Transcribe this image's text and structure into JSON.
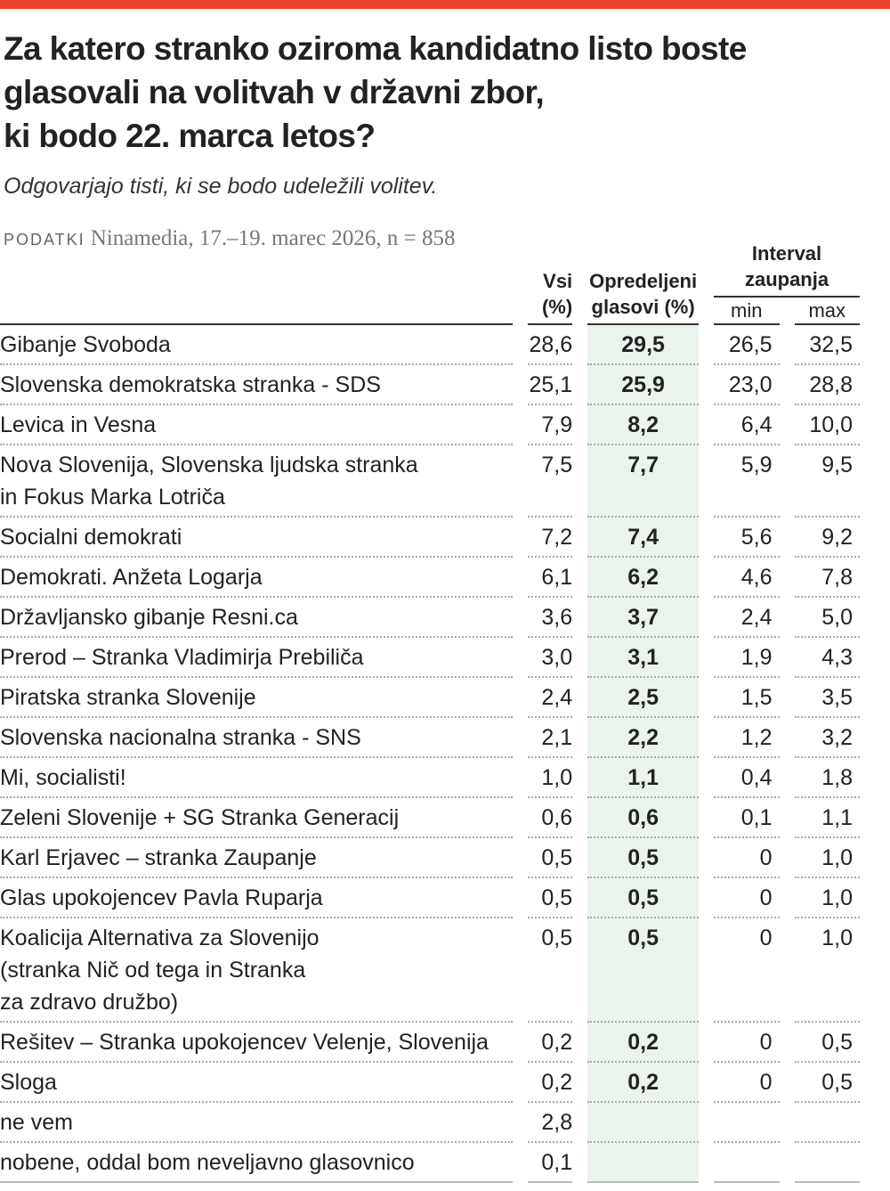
{
  "header": {
    "title": "Za katero stranko oziroma kandidatno listo boste\nglasovali na volitvah v državni zbor,\nki bodo 22. marca letos?",
    "subtitle": "Odgovarjajo tisti, ki se bodo udeležili volitev.",
    "source_label": "PODATKI",
    "source": "Ninamedia, 17.–19. marec 2026, n = 858"
  },
  "table": {
    "headers": {
      "vsi": "Vsi (%)",
      "opredeljeni": "Opredeljeni\nglasovi (%)",
      "interval": "Interval\nzaupanja",
      "min": "min",
      "max": "max"
    },
    "rows": [
      [
        "Gibanje Svoboda",
        "28,6",
        "29,5",
        "26,5",
        "32,5"
      ],
      [
        "Slovenska demokratska stranka - SDS",
        "25,1",
        "25,9",
        "23,0",
        "28,8"
      ],
      [
        "Levica in Vesna",
        "7,9",
        "8,2",
        "6,4",
        "10,0"
      ],
      [
        "Nova Slovenija, Slovenska ljudska stranka\nin Fokus Marka Lotriča",
        "7,5",
        "7,7",
        "5,9",
        "9,5"
      ],
      [
        "Socialni demokrati",
        "7,2",
        "7,4",
        "5,6",
        "9,2"
      ],
      [
        "Demokrati. Anžeta Logarja",
        "6,1",
        "6,2",
        "4,6",
        "7,8"
      ],
      [
        "Državljansko gibanje Resni.ca",
        "3,6",
        "3,7",
        "2,4",
        "5,0"
      ],
      [
        "Prerod – Stranka Vladimirja Prebiliča",
        "3,0",
        "3,1",
        "1,9",
        "4,3"
      ],
      [
        "Piratska stranka Slovenije",
        "2,4",
        "2,5",
        "1,5",
        "3,5"
      ],
      [
        "Slovenska nacionalna stranka - SNS",
        "2,1",
        "2,2",
        "1,2",
        "3,2"
      ],
      [
        "Mi, socialisti!",
        "1,0",
        "1,1",
        "0,4",
        "1,8"
      ],
      [
        "Zeleni Slovenije + SG Stranka Generacij",
        "0,6",
        "0,6",
        "0,1",
        "1,1"
      ],
      [
        "Karl Erjavec – stranka Zaupanje",
        "0,5",
        "0,5",
        "0",
        "1,0"
      ],
      [
        "Glas upokojencev Pavla Ruparja",
        "0,5",
        "0,5",
        "0",
        "1,0"
      ],
      [
        "Koalicija Alternativa za Slovenijo\n(stranka Nič od tega in Stranka\nza zdravo družbo)",
        "0,5",
        "0,5",
        "0",
        "1,0"
      ],
      [
        "Rešitev – Stranka upokojencev Velenje, Slovenija",
        "0,2",
        "0,2",
        "0",
        "0,5"
      ],
      [
        "Sloga",
        "0,2",
        "0,2",
        "0",
        "0,5"
      ],
      [
        "ne vem",
        "2,8"
      ],
      [
        "nobene, oddal bom neveljavno glasovnico",
        "0,1"
      ]
    ]
  }
}
